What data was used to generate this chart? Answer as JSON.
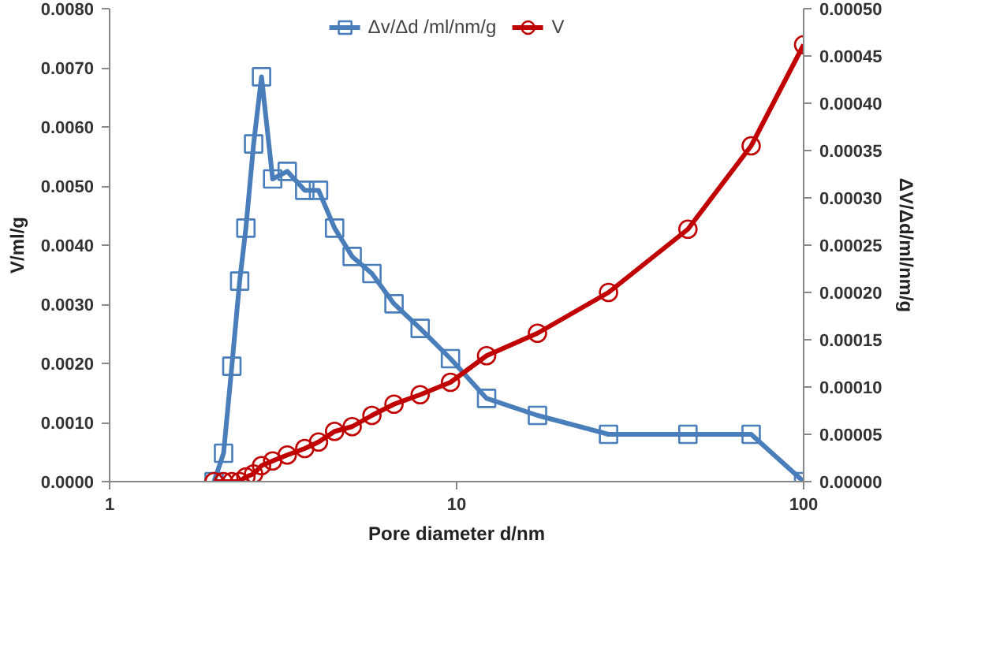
{
  "chart_data": {
    "type": "line",
    "xlabel": "Pore diameter d/nm",
    "ylabel": "V/ml/g",
    "y2label": "ΔV/Δd/ml/nm/g",
    "log": "x",
    "grid": false,
    "legend": "top",
    "line_style": "solid",
    "x": [
      2.0,
      2.13,
      2.25,
      2.37,
      2.47,
      2.6,
      2.74,
      2.95,
      3.25,
      3.65,
      4.0,
      4.45,
      5.0,
      5.7,
      6.6,
      7.85,
      9.6,
      12.2,
      17.1,
      27.4,
      46.4,
      70.6,
      100
    ],
    "xlim": [
      1,
      100
    ],
    "xticks": [
      1,
      10,
      100
    ],
    "ylim": [
      0,
      0.008
    ],
    "yticks": [
      {
        "value": 0,
        "label": "0.0000"
      },
      {
        "value": 0.001,
        "label": "0.0010"
      },
      {
        "value": 0.002,
        "label": "0.0020"
      },
      {
        "value": 0.003,
        "label": "0.0030"
      },
      {
        "value": 0.004,
        "label": "0.0040"
      },
      {
        "value": 0.005,
        "label": "0.0050"
      },
      {
        "value": 0.006,
        "label": "0.0060"
      },
      {
        "value": 0.007,
        "label": "0.0070"
      },
      {
        "value": 0.008,
        "label": "0.0080"
      }
    ],
    "y2lim": [
      0,
      0.0005
    ],
    "y2ticks": [
      {
        "value": 0,
        "label": "0.00000"
      },
      {
        "value": 5e-05,
        "label": "0.00005"
      },
      {
        "value": 0.0001,
        "label": "0.00010"
      },
      {
        "value": 0.00015,
        "label": "0.00015"
      },
      {
        "value": 0.0002,
        "label": "0.00020"
      },
      {
        "value": 0.00025,
        "label": "0.00025"
      },
      {
        "value": 0.0003,
        "label": "0.00030"
      },
      {
        "value": 0.00035,
        "label": "0.00035"
      },
      {
        "value": 0.0004,
        "label": "0.00040"
      },
      {
        "value": 0.00045,
        "label": "0.00045"
      },
      {
        "value": 0.0005,
        "label": "0.00050"
      }
    ],
    "series": [
      {
        "name": "Δv/Δd /ml/nm/g",
        "color": "#4a7ebb",
        "marker": "square",
        "axis": "y2",
        "values": [
          0,
          3e-05,
          0.000122,
          0.000212,
          0.000268,
          0.000357,
          0.000428,
          0.00032,
          0.000328,
          0.000308,
          0.000308,
          0.000268,
          0.000238,
          0.00022,
          0.000188,
          0.000162,
          0.00013,
          8.8e-05,
          7e-05,
          5e-05,
          5e-05,
          5e-05,
          0
        ]
      },
      {
        "name": "V",
        "color": "#c00000",
        "marker": "circle",
        "axis": "y",
        "values": [
          0,
          0,
          0,
          0,
          8e-05,
          0.00013,
          0.00027,
          0.00035,
          0.00045,
          0.00056,
          0.00067,
          0.00085,
          0.00093,
          0.00112,
          0.00131,
          0.00147,
          0.00168,
          0.00213,
          0.00251,
          0.0032,
          0.00427,
          0.00568,
          0.00739
        ]
      }
    ]
  }
}
